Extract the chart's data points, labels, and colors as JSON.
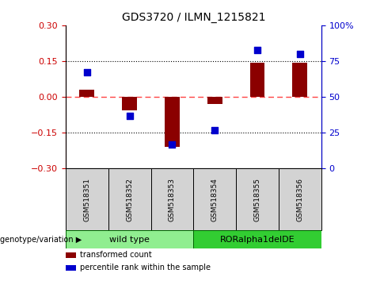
{
  "title": "GDS3720 / ILMN_1215821",
  "samples": [
    "GSM518351",
    "GSM518352",
    "GSM518353",
    "GSM518354",
    "GSM518355",
    "GSM518356"
  ],
  "red_bars": [
    0.03,
    -0.055,
    -0.21,
    -0.03,
    0.143,
    0.143
  ],
  "blue_dots": [
    67,
    37,
    17,
    27,
    83,
    80
  ],
  "ylim_left": [
    -0.3,
    0.3
  ],
  "ylim_right": [
    0,
    100
  ],
  "yticks_left": [
    -0.3,
    -0.15,
    0,
    0.15,
    0.3
  ],
  "yticks_right": [
    0,
    25,
    50,
    75,
    100
  ],
  "hlines_dotted": [
    -0.15,
    0.15
  ],
  "hline_zero": 0,
  "bar_color": "#8B0000",
  "dot_color": "#0000CD",
  "zero_line_color": "#FF4444",
  "groups": [
    {
      "label": "wild type",
      "samples": [
        0,
        1,
        2
      ],
      "color": "#90EE90"
    },
    {
      "label": "RORalpha1delDE",
      "samples": [
        3,
        4,
        5
      ],
      "color": "#32CD32"
    }
  ],
  "genotype_label": "genotype/variation",
  "legend_entries": [
    {
      "label": "transformed count",
      "color": "#8B0000"
    },
    {
      "label": "percentile rank within the sample",
      "color": "#0000CD"
    }
  ],
  "bar_width": 0.35,
  "dot_size": 40,
  "left_tick_color": "#CC0000",
  "right_tick_color": "#0000CD",
  "sample_box_color": "#D3D3D3",
  "fig_width": 4.61,
  "fig_height": 3.54,
  "fig_dpi": 100
}
